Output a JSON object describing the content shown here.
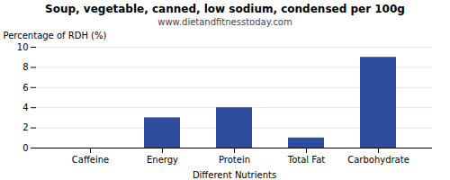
{
  "chart_data": {
    "type": "bar",
    "title": "Soup, vegetable, canned, low sodium, condensed per 100g",
    "subtitle": "www.dietandfitnesstoday.com",
    "categories": [
      "Caffeine",
      "Energy",
      "Protein",
      "Total Fat",
      "Carbohydrate"
    ],
    "values": [
      0,
      3,
      4,
      1,
      9
    ],
    "color": "#2e4d9e",
    "xlabel": "Different Nutrients",
    "ylabel": "Percentage of RDH (%)",
    "ylim": [
      0,
      10
    ],
    "yticks": [
      0,
      2,
      4,
      6,
      8,
      10
    ],
    "grid": true
  }
}
